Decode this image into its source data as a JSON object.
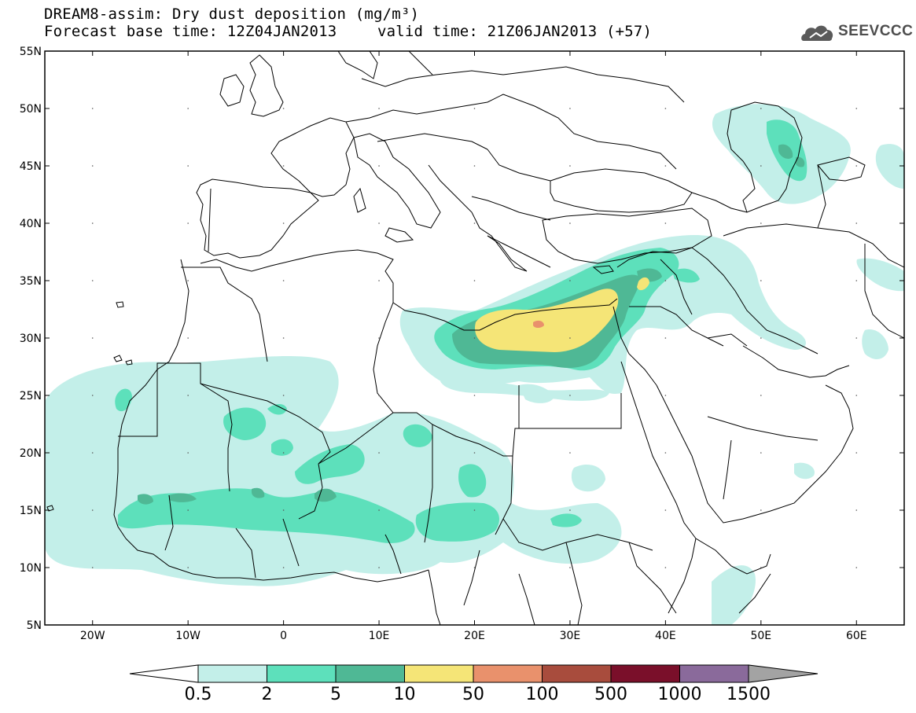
{
  "title": {
    "line1": "DREAM8-assim: Dry dust deposition (mg/m³)",
    "line2_base": "Forecast base time: 12Z04JAN2013",
    "line2_valid": "valid time: 21Z06JAN2013 (+57)"
  },
  "logo": {
    "text": "SEEVCCC",
    "icon": "cloud-logo-icon"
  },
  "axes": {
    "lon_labels": [
      "20W",
      "10W",
      "0",
      "10E",
      "20E",
      "30E",
      "40E",
      "50E",
      "60E"
    ],
    "lat_labels": [
      "55N",
      "50N",
      "45N",
      "40N",
      "35N",
      "30N",
      "25N",
      "20N",
      "15N",
      "10N",
      "5N"
    ],
    "lon_range": [
      -25,
      65
    ],
    "lat_range": [
      5,
      55
    ]
  },
  "legend": {
    "thresholds": [
      "0.5",
      "2",
      "5",
      "10",
      "50",
      "100",
      "500",
      "1000",
      "1500"
    ],
    "colors": [
      "#ffffff",
      "#c3efe9",
      "#5de0bb",
      "#4fb895",
      "#f5e577",
      "#e9916c",
      "#a84c3d",
      "#7a0f2a",
      "#8a6a9b",
      "#a3a3a3"
    ]
  },
  "colors": {
    "light": "#c3efe9",
    "medium": "#5de0bb",
    "dark": "#4fb895",
    "yellow": "#f5e577",
    "orange": "#e9916c"
  }
}
